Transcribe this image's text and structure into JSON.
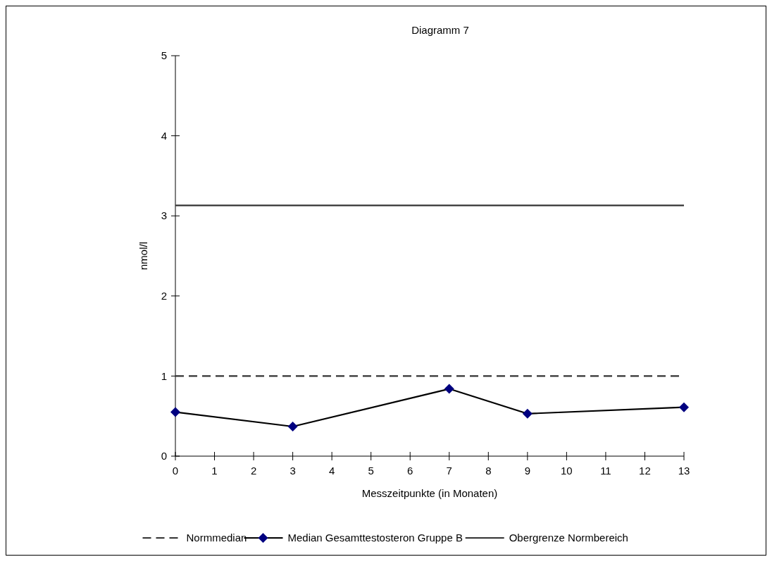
{
  "chart_data": {
    "type": "line",
    "title": "Diagramm 7",
    "xlabel": "Messzeitpunkte (in Monaten)",
    "ylabel": "nmol/l",
    "xlim": [
      0,
      13
    ],
    "xticks": [
      0,
      1,
      2,
      3,
      4,
      5,
      6,
      7,
      8,
      9,
      10,
      11,
      12,
      13
    ],
    "ylim": [
      0,
      5
    ],
    "yticks": [
      0,
      1,
      2,
      3,
      4,
      5
    ],
    "grid": false,
    "legend": "bottom",
    "series": [
      {
        "name": "Normmedian",
        "color": "#333333",
        "x": [
          0,
          13
        ],
        "values": [
          1.0,
          1.0
        ],
        "line_style": "dashed",
        "marker": "none"
      },
      {
        "name": "Median Gesamttestosteron Gruppe B",
        "color": "#000080",
        "x": [
          0,
          3,
          7,
          9,
          13
        ],
        "values": [
          0.55,
          0.37,
          0.84,
          0.53,
          0.61
        ],
        "line_style": "solid",
        "marker": "diamond"
      },
      {
        "name": "Obergrenze Normbereich",
        "color": "#333333",
        "x": [
          0,
          13
        ],
        "values": [
          3.13,
          3.13
        ],
        "line_style": "solid",
        "marker": "none"
      }
    ]
  }
}
